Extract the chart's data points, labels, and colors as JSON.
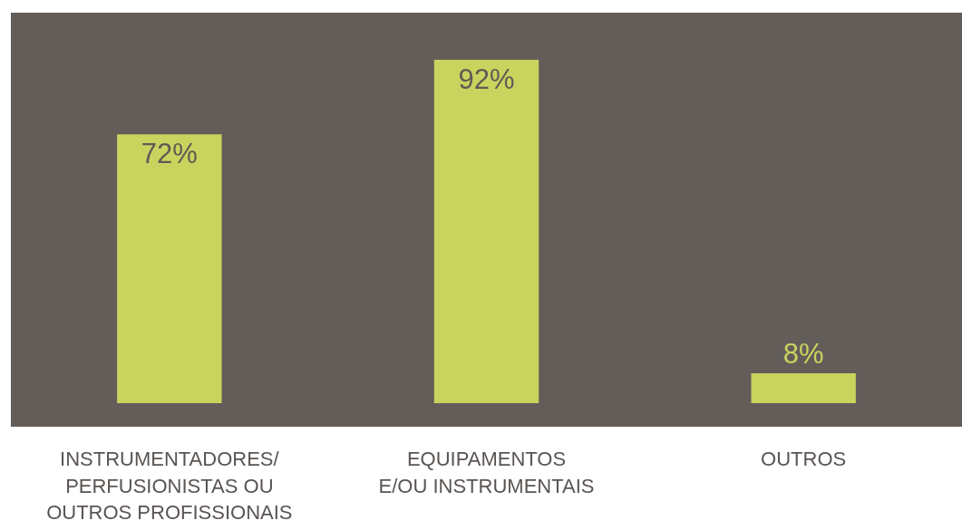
{
  "chart_data": {
    "type": "bar",
    "categories": [
      "INSTRUMENTADORES/\nPERFUSIONISTAS OU\nOUTROS PROFISSIONAIS",
      "EQUIPAMENTOS\nE/OU INSTRUMENTAIS",
      "OUTROS"
    ],
    "values": [
      72,
      92,
      8
    ],
    "value_labels": [
      "72%",
      "92%",
      "8%"
    ],
    "color": "#c8d45e",
    "legend": false,
    "grid": false
  }
}
